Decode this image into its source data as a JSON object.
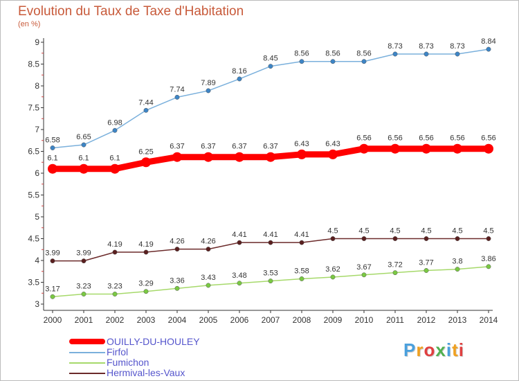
{
  "header": {
    "title": "Evolution du Taux de Taxe d'Habitation",
    "unit": "(en %)"
  },
  "brand": {
    "text": "Proxiti",
    "colors": [
      "#4aa0dd",
      "#f0a020",
      "#e04040",
      "#50b050",
      "#4aa0dd",
      "#f0a020",
      "#e04040"
    ]
  },
  "chart_data": {
    "type": "line",
    "title": "Evolution du Taux de Taxe d'Habitation",
    "ylabel": "(en %)",
    "xlabel": "",
    "x": [
      "2000",
      "2001",
      "2002",
      "2003",
      "2004",
      "2005",
      "2006",
      "2007",
      "2008",
      "2009",
      "2010",
      "2011",
      "2012",
      "2013",
      "2014"
    ],
    "ylim": [
      3,
      9
    ],
    "yticks": [
      "3",
      "3.5",
      "4",
      "4.5",
      "5",
      "5.5",
      "6",
      "6.5",
      "7",
      "7.5",
      "8",
      "8.5",
      "9"
    ],
    "ytick_values": [
      3,
      3.5,
      4,
      4.5,
      5,
      5.5,
      6,
      6.5,
      7,
      7.5,
      8,
      8.5,
      9
    ],
    "grid": false,
    "legend_position": "bottom-left",
    "series": [
      {
        "name": "OUILLY-DU-HOULEY",
        "color": "#ff0000",
        "values": [
          6.1,
          6.1,
          6.1,
          6.25,
          6.37,
          6.37,
          6.37,
          6.37,
          6.43,
          6.43,
          6.56,
          6.56,
          6.56,
          6.56,
          6.56
        ],
        "labels": [
          "6.1",
          "6.1",
          "6.1",
          "6.25",
          "6.37",
          "6.37",
          "6.37",
          "6.37",
          "6.43",
          "6.43",
          "6.56",
          "6.56",
          "6.56",
          "6.56",
          "6.56"
        ]
      },
      {
        "name": "Firfol",
        "color": "#7ab0dc",
        "marker_color": "#3d85c6",
        "values": [
          6.58,
          6.65,
          6.98,
          7.44,
          7.74,
          7.89,
          8.16,
          8.45,
          8.56,
          8.56,
          8.56,
          8.73,
          8.73,
          8.73,
          8.84
        ],
        "labels": [
          "6.58",
          "6.65",
          "6.98",
          "7.44",
          "7.74",
          "7.89",
          "8.16",
          "8.45",
          "8.56",
          "8.56",
          "8.56",
          "8.73",
          "8.73",
          "8.73",
          "8.84"
        ]
      },
      {
        "name": "Fumichon",
        "color": "#a6d96a",
        "marker_color": "#7ac943",
        "values": [
          3.17,
          3.23,
          3.23,
          3.29,
          3.36,
          3.43,
          3.48,
          3.53,
          3.58,
          3.62,
          3.67,
          3.72,
          3.77,
          3.8,
          3.86
        ],
        "labels": [
          "3.17",
          "3.23",
          "3.23",
          "3.29",
          "3.36",
          "3.43",
          "3.48",
          "3.53",
          "3.58",
          "3.62",
          "3.67",
          "3.72",
          "3.77",
          "3.8",
          "3.86"
        ]
      },
      {
        "name": "Hermival-les-Vaux",
        "color": "#6b2a2a",
        "marker_color": "#5a1f1f",
        "values": [
          3.99,
          3.99,
          4.19,
          4.19,
          4.26,
          4.26,
          4.41,
          4.41,
          4.41,
          4.5,
          4.5,
          4.5,
          4.5,
          4.5,
          4.5
        ],
        "labels": [
          "3.99",
          "3.99",
          "4.19",
          "4.19",
          "4.26",
          "4.26",
          "4.41",
          "4.41",
          "4.41",
          "4.5",
          "4.5",
          "4.5",
          "4.5",
          "4.5",
          "4.5"
        ]
      }
    ]
  }
}
